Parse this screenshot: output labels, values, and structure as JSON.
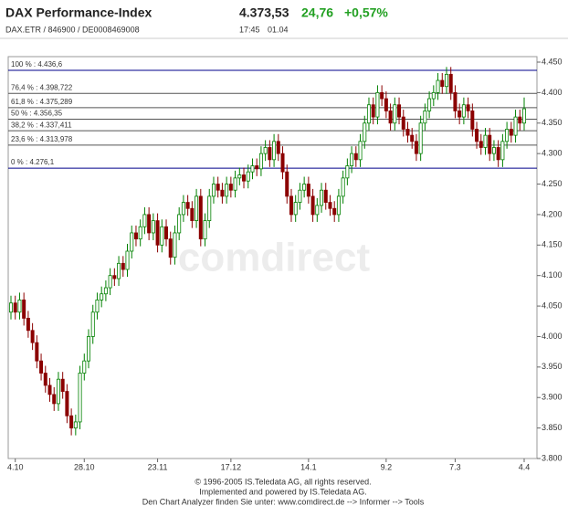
{
  "header": {
    "title": "DAX Performance-Index",
    "price": "4.373,53",
    "change": "24,76",
    "change_pct": "+0,57%",
    "ids": "DAX.ETR / 846900 / DE0008469008",
    "time": "17:45",
    "date": "01.04"
  },
  "chart_data": {
    "type": "candlestick",
    "watermark": "comdirect",
    "up_color": "#008000",
    "down_color": "#8b0000",
    "categories": [
      null,
      "4.10",
      null,
      null,
      null,
      null,
      null,
      null,
      null,
      null,
      null,
      null,
      null,
      null,
      null,
      null,
      null,
      "28.10",
      null,
      null,
      null,
      null,
      null,
      null,
      null,
      null,
      null,
      null,
      null,
      null,
      null,
      null,
      null,
      null,
      "23.11",
      null,
      null,
      null,
      null,
      null,
      null,
      null,
      null,
      null,
      null,
      null,
      null,
      null,
      null,
      null,
      null,
      "17.12",
      null,
      null,
      null,
      null,
      null,
      null,
      null,
      null,
      null,
      null,
      null,
      null,
      null,
      null,
      null,
      null,
      null,
      "14.1",
      null,
      null,
      null,
      null,
      null,
      null,
      null,
      null,
      null,
      null,
      null,
      null,
      null,
      null,
      null,
      null,
      null,
      "9.2",
      null,
      null,
      null,
      null,
      null,
      null,
      null,
      null,
      null,
      null,
      null,
      null,
      null,
      null,
      null,
      "7.3",
      null,
      null,
      null,
      null,
      null,
      null,
      null,
      null,
      null,
      null,
      null,
      null,
      null,
      null,
      null,
      "4.4"
    ],
    "open": [
      4040,
      4055,
      4040,
      4060,
      4030,
      4010,
      3990,
      3960,
      3940,
      3920,
      3905,
      3890,
      3930,
      3910,
      3870,
      3850,
      3860,
      3940,
      3960,
      4000,
      4040,
      4060,
      4070,
      4080,
      4100,
      4095,
      4120,
      4110,
      4140,
      4170,
      4160,
      4180,
      4200,
      4170,
      4190,
      4150,
      4180,
      4160,
      4130,
      4170,
      4200,
      4220,
      4210,
      4190,
      4230,
      4160,
      4190,
      4230,
      4250,
      4240,
      4230,
      4250,
      4240,
      4260,
      4265,
      4255,
      4270,
      4280,
      4275,
      4300,
      4310,
      4290,
      4320,
      4300,
      4270,
      4230,
      4200,
      4220,
      4240,
      4250,
      4230,
      4200,
      4215,
      4240,
      4220,
      4210,
      4200,
      4230,
      4260,
      4280,
      4300,
      4290,
      4320,
      4350,
      4380,
      4360,
      4400,
      4390,
      4370,
      4350,
      4380,
      4360,
      4340,
      4330,
      4320,
      4300,
      4350,
      4370,
      4390,
      4400,
      4420,
      4410,
      4430,
      4400,
      4370,
      4360,
      4380,
      4370,
      4340,
      4320,
      4310,
      4330,
      4300,
      4310,
      4290,
      4320,
      4340,
      4330,
      4360,
      4350
    ],
    "high": [
      4067,
      4067,
      4072,
      4072,
      4042,
      4022,
      4002,
      3972,
      3952,
      3932,
      3917,
      3942,
      3942,
      3922,
      3882,
      3872,
      3952,
      3972,
      4012,
      4052,
      4072,
      4082,
      4092,
      4112,
      4112,
      4132,
      4132,
      4152,
      4182,
      4182,
      4192,
      4212,
      4212,
      4202,
      4202,
      4192,
      4192,
      4172,
      4182,
      4212,
      4232,
      4232,
      4222,
      4242,
      4242,
      4202,
      4242,
      4262,
      4262,
      4252,
      4262,
      4262,
      4272,
      4277,
      4277,
      4282,
      4292,
      4292,
      4312,
      4322,
      4322,
      4332,
      4332,
      4312,
      4282,
      4242,
      4232,
      4252,
      4262,
      4262,
      4242,
      4227,
      4252,
      4252,
      4232,
      4222,
      4242,
      4272,
      4292,
      4312,
      4312,
      4332,
      4362,
      4392,
      4392,
      4412,
      4412,
      4402,
      4382,
      4392,
      4392,
      4372,
      4352,
      4342,
      4332,
      4362,
      4382,
      4402,
      4412,
      4432,
      4432,
      4442,
      4442,
      4412,
      4382,
      4392,
      4392,
      4382,
      4352,
      4332,
      4342,
      4342,
      4322,
      4322,
      4332,
      4352,
      4352,
      4372,
      4372,
      4392
    ],
    "low": [
      4028,
      4028,
      4028,
      4018,
      3998,
      3978,
      3948,
      3928,
      3908,
      3893,
      3878,
      3878,
      3898,
      3858,
      3838,
      3838,
      3848,
      3928,
      3948,
      3988,
      4028,
      4048,
      4058,
      4068,
      4083,
      4083,
      4098,
      4098,
      4128,
      4148,
      4148,
      4168,
      4158,
      4158,
      4138,
      4138,
      4148,
      4118,
      4118,
      4158,
      4188,
      4198,
      4178,
      4178,
      4148,
      4148,
      4178,
      4218,
      4228,
      4218,
      4218,
      4228,
      4228,
      4248,
      4243,
      4243,
      4258,
      4263,
      4263,
      4288,
      4278,
      4278,
      4288,
      4258,
      4218,
      4188,
      4188,
      4208,
      4228,
      4218,
      4188,
      4188,
      4203,
      4208,
      4198,
      4188,
      4188,
      4218,
      4248,
      4268,
      4278,
      4278,
      4308,
      4338,
      4348,
      4348,
      4378,
      4358,
      4338,
      4338,
      4348,
      4328,
      4318,
      4308,
      4288,
      4288,
      4338,
      4358,
      4378,
      4388,
      4398,
      4398,
      4388,
      4358,
      4348,
      4348,
      4358,
      4328,
      4308,
      4298,
      4298,
      4288,
      4288,
      4278,
      4278,
      4308,
      4318,
      4318,
      4338,
      4338
    ],
    "close": [
      4055,
      4040,
      4060,
      4030,
      4010,
      3990,
      3960,
      3940,
      3920,
      3905,
      3890,
      3930,
      3910,
      3870,
      3850,
      3860,
      3940,
      3960,
      4000,
      4040,
      4060,
      4070,
      4080,
      4100,
      4095,
      4120,
      4110,
      4140,
      4170,
      4160,
      4180,
      4200,
      4170,
      4190,
      4150,
      4180,
      4160,
      4130,
      4170,
      4200,
      4220,
      4210,
      4190,
      4230,
      4160,
      4190,
      4230,
      4250,
      4240,
      4230,
      4250,
      4240,
      4260,
      4265,
      4255,
      4270,
      4280,
      4275,
      4300,
      4310,
      4290,
      4320,
      4300,
      4270,
      4230,
      4200,
      4220,
      4240,
      4250,
      4230,
      4200,
      4215,
      4240,
      4220,
      4210,
      4200,
      4230,
      4260,
      4280,
      4300,
      4290,
      4320,
      4350,
      4380,
      4360,
      4400,
      4390,
      4370,
      4350,
      4380,
      4360,
      4340,
      4330,
      4320,
      4300,
      4350,
      4370,
      4390,
      4400,
      4420,
      4410,
      4430,
      4400,
      4370,
      4360,
      4380,
      4370,
      4340,
      4320,
      4310,
      4330,
      4300,
      4310,
      4290,
      4320,
      4340,
      4330,
      4360,
      4350,
      4373.53
    ],
    "ylim": [
      3800,
      4450
    ],
    "yticks": [
      {
        "value": 3800,
        "label": "3.800"
      },
      {
        "value": 3850,
        "label": "3.850"
      },
      {
        "value": 3900,
        "label": "3.900"
      },
      {
        "value": 3950,
        "label": "3.950"
      },
      {
        "value": 4000,
        "label": "4.000"
      },
      {
        "value": 4050,
        "label": "4.050"
      },
      {
        "value": 4100,
        "label": "4.100"
      },
      {
        "value": 4150,
        "label": "4.150"
      },
      {
        "value": 4200,
        "label": "4.200"
      },
      {
        "value": 4250,
        "label": "4.250"
      },
      {
        "value": 4300,
        "label": "4.300"
      },
      {
        "value": 4350,
        "label": "4.350"
      },
      {
        "value": 4400,
        "label": "4.400"
      },
      {
        "value": 4450,
        "label": "4.450"
      }
    ],
    "levels": [
      {
        "value": 4436.6,
        "label": "100 % : 4.436,6",
        "color": "#00008b"
      },
      {
        "value": 4398.722,
        "label": "76,4 % : 4.398,722",
        "color": "#555555"
      },
      {
        "value": 4375.289,
        "label": "61,8 % : 4.375,289",
        "color": "#555555"
      },
      {
        "value": 4356.35,
        "label": "50 % : 4.356,35",
        "color": "#555555"
      },
      {
        "value": 4337.411,
        "label": "38,2 % : 4.337,411",
        "color": "#555555"
      },
      {
        "value": 4313.978,
        "label": "23,6 % : 4.313,978",
        "color": "#555555"
      },
      {
        "value": 4276.1,
        "label": "0 % : 4.276,1",
        "color": "#00008b"
      }
    ]
  },
  "footer": [
    "© 1996-2005 IS.Teledata AG, all rights reserved.",
    "Implemented and powered by IS.Teledata AG.",
    "Den Chart Analyzer finden Sie unter: www.comdirect.de --> Informer --> Tools"
  ]
}
